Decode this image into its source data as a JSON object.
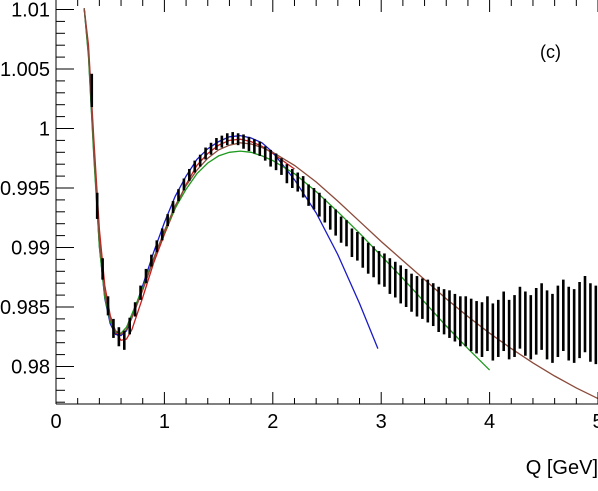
{
  "chart_data": {
    "type": "scatter",
    "panel_label": "(c)",
    "xlabel": "Q [GeV]",
    "ylabel": "",
    "xlim": [
      0,
      5
    ],
    "ylim": [
      0.9762,
      1.0101
    ],
    "x_ticks": [
      0,
      1,
      2,
      3,
      4,
      5
    ],
    "x_tick_labels": [
      "0",
      "1",
      "2",
      "3",
      "4",
      "5"
    ],
    "y_ticks": [
      0.98,
      0.985,
      0.99,
      0.995,
      1,
      1.005,
      1.01
    ],
    "y_tick_labels": [
      "0.98",
      "0.985",
      "0.99",
      "0.995",
      "1",
      "1.005",
      "1.01"
    ],
    "data": {
      "x": [
        0.33,
        0.38,
        0.43,
        0.48,
        0.53,
        0.58,
        0.63,
        0.68,
        0.73,
        0.78,
        0.83,
        0.88,
        0.93,
        0.98,
        1.03,
        1.08,
        1.13,
        1.18,
        1.23,
        1.28,
        1.33,
        1.38,
        1.43,
        1.48,
        1.53,
        1.58,
        1.63,
        1.68,
        1.73,
        1.78,
        1.83,
        1.88,
        1.93,
        1.98,
        2.03,
        2.08,
        2.13,
        2.18,
        2.23,
        2.28,
        2.33,
        2.38,
        2.43,
        2.48,
        2.53,
        2.58,
        2.63,
        2.68,
        2.73,
        2.78,
        2.83,
        2.88,
        2.93,
        2.98,
        3.03,
        3.08,
        3.13,
        3.18,
        3.23,
        3.28,
        3.33,
        3.38,
        3.43,
        3.48,
        3.53,
        3.58,
        3.63,
        3.68,
        3.73,
        3.78,
        3.83,
        3.88,
        3.93,
        3.98,
        4.03,
        4.08,
        4.13,
        4.18,
        4.23,
        4.28,
        4.33,
        4.38,
        4.43,
        4.48,
        4.53,
        4.58,
        4.63,
        4.68,
        4.73,
        4.78,
        4.83,
        4.88,
        4.93,
        4.98
      ],
      "y": [
        1.0032,
        0.9935,
        0.9882,
        0.9851,
        0.9832,
        0.9825,
        0.9822,
        0.9834,
        0.9848,
        0.9862,
        0.9876,
        0.9889,
        0.9901,
        0.9911,
        0.9923,
        0.9934,
        0.9944,
        0.9953,
        0.9961,
        0.9968,
        0.9973,
        0.9979,
        0.9983,
        0.9987,
        0.9989,
        0.9991,
        0.9992,
        0.9991,
        0.9989,
        0.9987,
        0.9985,
        0.9983,
        0.9979,
        0.9975,
        0.9972,
        0.9968,
        0.9962,
        0.9958,
        0.9955,
        0.9951,
        0.9944,
        0.9941,
        0.9936,
        0.9931,
        0.9925,
        0.9921,
        0.9915,
        0.9912,
        0.9904,
        0.9901,
        0.9896,
        0.9891,
        0.9888,
        0.9883,
        0.9881,
        0.9876,
        0.9873,
        0.9869,
        0.9866,
        0.9862,
        0.9859,
        0.9857,
        0.9855,
        0.9852,
        0.9848,
        0.9846,
        0.9844,
        0.9841,
        0.9838,
        0.9838,
        0.9835,
        0.9833,
        0.9831,
        0.9836,
        0.9829,
        0.9832,
        0.9838,
        0.9831,
        0.9834,
        0.9841,
        0.9836,
        0.9833,
        0.9838,
        0.9842,
        0.9835,
        0.9832,
        0.9838,
        0.9843,
        0.9836,
        0.9834,
        0.9839,
        0.9844,
        0.9837,
        0.9835
      ],
      "yerr": [
        0.0014,
        0.0011,
        0.0009,
        0.0008,
        0.0008,
        0.0008,
        0.0008,
        0.0007,
        0.0006,
        0.0006,
        0.0006,
        0.0005,
        0.0005,
        0.0005,
        0.0005,
        0.0005,
        0.0005,
        0.0005,
        0.0005,
        0.0005,
        0.0005,
        0.0005,
        0.0005,
        0.0005,
        0.0005,
        0.0005,
        0.0005,
        0.0005,
        0.0006,
        0.0006,
        0.0006,
        0.0006,
        0.0006,
        0.0007,
        0.0007,
        0.0007,
        0.0008,
        0.0008,
        0.0008,
        0.0009,
        0.0009,
        0.0009,
        0.001,
        0.001,
        0.001,
        0.0011,
        0.0011,
        0.0011,
        0.0012,
        0.0012,
        0.0013,
        0.0013,
        0.0013,
        0.0014,
        0.0014,
        0.0015,
        0.0015,
        0.0016,
        0.0016,
        0.0016,
        0.0017,
        0.0017,
        0.0018,
        0.0018,
        0.0019,
        0.0019,
        0.002,
        0.002,
        0.0021,
        0.0021,
        0.0022,
        0.0022,
        0.0023,
        0.0023,
        0.0024,
        0.0024,
        0.0025,
        0.0025,
        0.0026,
        0.0026,
        0.0027,
        0.0027,
        0.0028,
        0.0028,
        0.0029,
        0.0029,
        0.003,
        0.003,
        0.0031,
        0.0031,
        0.0032,
        0.0032,
        0.0033,
        0.0033
      ]
    },
    "fits": [
      {
        "color": "#c81e1e",
        "x": [
          0.26,
          0.3,
          0.35,
          0.4,
          0.45,
          0.5,
          0.55,
          0.6,
          0.65,
          0.7,
          0.8,
          0.9,
          1.0,
          1.1,
          1.2,
          1.3,
          1.4,
          1.5,
          1.6,
          1.7,
          1.8,
          1.9,
          2.0,
          2.2
        ],
        "y": [
          1.0101,
          1.007,
          0.999,
          0.9915,
          0.9868,
          0.9843,
          0.9829,
          0.9822,
          0.9823,
          0.9831,
          0.9858,
          0.9887,
          0.9911,
          0.9933,
          0.9953,
          0.9969,
          0.9979,
          0.9986,
          0.999,
          0.9991,
          0.9989,
          0.9985,
          0.9979,
          0.9966
        ]
      },
      {
        "color": "#1a1ac8",
        "x": [
          0.26,
          0.3,
          0.35,
          0.4,
          0.45,
          0.5,
          0.55,
          0.6,
          0.65,
          0.7,
          0.8,
          0.9,
          1.0,
          1.1,
          1.2,
          1.3,
          1.4,
          1.5,
          1.6,
          1.7,
          1.8,
          1.9,
          2.0,
          2.2,
          2.4,
          2.6,
          2.8,
          2.97
        ],
        "y": [
          1.0101,
          1.0062,
          0.9978,
          0.9901,
          0.9857,
          0.9836,
          0.9827,
          0.9826,
          0.983,
          0.9841,
          0.9868,
          0.9896,
          0.9921,
          0.9943,
          0.996,
          0.9974,
          0.9983,
          0.9989,
          0.9993,
          0.9994,
          0.9992,
          0.9988,
          0.998,
          0.9957,
          0.9929,
          0.9894,
          0.9853,
          0.9815
        ]
      },
      {
        "color": "#1f9a1f",
        "x": [
          0.26,
          0.3,
          0.35,
          0.4,
          0.45,
          0.5,
          0.55,
          0.6,
          0.65,
          0.7,
          0.8,
          0.9,
          1.0,
          1.1,
          1.2,
          1.3,
          1.4,
          1.5,
          1.6,
          1.7,
          1.8,
          1.9,
          2.0,
          2.2,
          2.4,
          2.6,
          2.8,
          3.0,
          3.2,
          3.4,
          3.6,
          3.8,
          4.0
        ],
        "y": [
          1.0101,
          1.006,
          0.9975,
          0.99,
          0.9858,
          0.9838,
          0.9829,
          0.9828,
          0.9833,
          0.9844,
          0.9866,
          0.9891,
          0.9913,
          0.9933,
          0.9949,
          0.9962,
          0.9971,
          0.9977,
          0.998,
          0.9981,
          0.998,
          0.9977,
          0.9973,
          0.9962,
          0.9947,
          0.993,
          0.9912,
          0.9893,
          0.9874,
          0.9854,
          0.9834,
          0.9815,
          0.9797
        ]
      },
      {
        "color": "#8b4a3a",
        "x": [
          0.26,
          0.3,
          0.35,
          0.4,
          0.45,
          0.5,
          0.55,
          0.6,
          0.65,
          0.7,
          0.8,
          0.9,
          1.0,
          1.1,
          1.2,
          1.3,
          1.4,
          1.5,
          1.6,
          1.7,
          1.8,
          1.9,
          2.0,
          2.2,
          2.4,
          2.6,
          2.8,
          3.0,
          3.2,
          3.4,
          3.6,
          3.8,
          4.0,
          4.2,
          4.4,
          4.6,
          4.8,
          5.0
        ],
        "y": [
          1.0101,
          1.0065,
          0.9982,
          0.9906,
          0.9862,
          0.984,
          0.983,
          0.9827,
          0.9831,
          0.9841,
          0.9864,
          0.989,
          0.9914,
          0.9935,
          0.9952,
          0.9965,
          0.9975,
          0.9982,
          0.9986,
          0.9988,
          0.9987,
          0.9984,
          0.998,
          0.9969,
          0.9955,
          0.9939,
          0.9922,
          0.9905,
          0.9889,
          0.9873,
          0.9857,
          0.9842,
          0.9828,
          0.9815,
          0.9803,
          0.9792,
          0.9782,
          0.9773
        ]
      }
    ],
    "grid": false,
    "legend": "none"
  }
}
